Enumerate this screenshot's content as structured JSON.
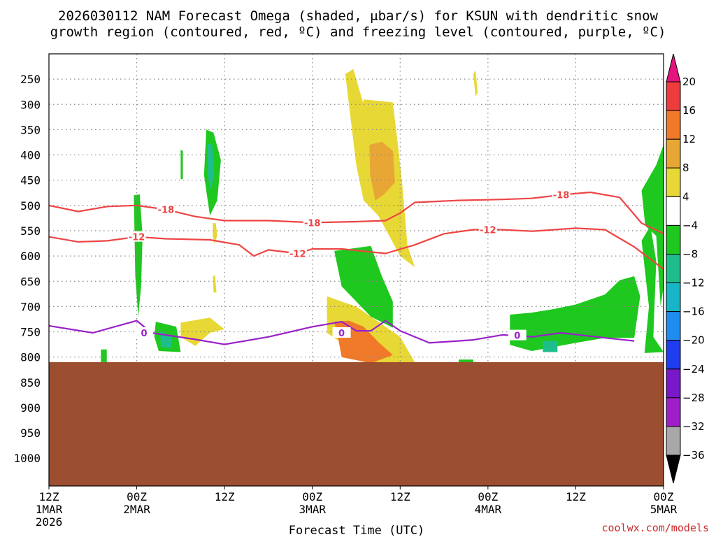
{
  "chart_data": {
    "type": "time-height",
    "title_lines": [
      "2026030112 NAM Forecast Omega (shaded, μbar/s) for KSUN with dendritic snow",
      "growth region (contoured, red, ºC) and freezing level (contoured, purple, ºC)"
    ],
    "xlabel": "Forecast Time (UTC)",
    "credit": "coolwx.com/models",
    "x_ticks": [
      {
        "h": 0,
        "top": "12Z",
        "mid": "1MAR",
        "bot": "2026"
      },
      {
        "h": 12,
        "top": "00Z",
        "mid": "2MAR",
        "bot": ""
      },
      {
        "h": 24,
        "top": "12Z",
        "mid": "",
        "bot": ""
      },
      {
        "h": 36,
        "top": "00Z",
        "mid": "3MAR",
        "bot": ""
      },
      {
        "h": 48,
        "top": "12Z",
        "mid": "",
        "bot": ""
      },
      {
        "h": 60,
        "top": "00Z",
        "mid": "4MAR",
        "bot": ""
      },
      {
        "h": 72,
        "top": "12Z",
        "mid": "",
        "bot": ""
      },
      {
        "h": 84,
        "top": "00Z",
        "mid": "5MAR",
        "bot": ""
      }
    ],
    "x_range_hours": [
      0,
      84
    ],
    "y_ticks": [
      250,
      300,
      350,
      400,
      450,
      500,
      550,
      600,
      650,
      700,
      750,
      800,
      850,
      900,
      950,
      1000
    ],
    "y_range_hPa": [
      200,
      1055
    ],
    "ground_level_hPa": 810,
    "colorbar": {
      "labels": [
        "20",
        "16",
        "12",
        "8",
        "4",
        "−4",
        "−8",
        "−12",
        "−16",
        "−20",
        "−24",
        "−28",
        "−32",
        "−36"
      ],
      "colors": [
        "#e3147e",
        "#ee3c3c",
        "#f07a2a",
        "#e8a634",
        "#e8d835",
        "#ffffff",
        "#1ec81e",
        "#1ebe8c",
        "#18b4c8",
        "#1e8cf0",
        "#1e3cf0",
        "#7818c8",
        "#a01ec8",
        "#a8a8a8",
        "#000000"
      ]
    },
    "colors": {
      "ground": "#9c4e30",
      "snow_growth": "#ee4444",
      "freezing": "#9a20c8",
      "om_pos1": "#e8d835",
      "om_pos2": "#e8a634",
      "om_pos3": "#f07a2a",
      "om_neg1": "#1ec81e",
      "om_neg2": "#1ebe8c",
      "om_neg3": "#18b4c8"
    },
    "contour_labels": {
      "m18": "-18",
      "m12": "-12",
      "zero": "0"
    },
    "lines": {
      "m18": [
        [
          0,
          500
        ],
        [
          4,
          512
        ],
        [
          8,
          502
        ],
        [
          12,
          500
        ],
        [
          16,
          508
        ],
        [
          20,
          522
        ],
        [
          24,
          530
        ],
        [
          30,
          530
        ],
        [
          36,
          534
        ],
        [
          42,
          532
        ],
        [
          46,
          530
        ],
        [
          48,
          515
        ],
        [
          50,
          494
        ],
        [
          56,
          490
        ],
        [
          62,
          488
        ],
        [
          66,
          486
        ],
        [
          70,
          479
        ],
        [
          74,
          474
        ],
        [
          78,
          484
        ],
        [
          81,
          535
        ],
        [
          84,
          556
        ]
      ],
      "m12": [
        [
          0,
          562
        ],
        [
          4,
          572
        ],
        [
          8,
          570
        ],
        [
          12,
          562
        ],
        [
          16,
          566
        ],
        [
          22,
          568
        ],
        [
          26,
          578
        ],
        [
          28,
          600
        ],
        [
          30,
          588
        ],
        [
          34,
          595
        ],
        [
          36,
          586
        ],
        [
          40,
          586
        ],
        [
          46,
          595
        ],
        [
          50,
          578
        ],
        [
          54,
          556
        ],
        [
          58,
          548
        ],
        [
          62,
          548
        ],
        [
          66,
          551
        ],
        [
          72,
          545
        ],
        [
          76,
          548
        ],
        [
          80,
          582
        ],
        [
          84,
          626
        ]
      ],
      "zero": [
        [
          0,
          738
        ],
        [
          6,
          752
        ],
        [
          12,
          728
        ],
        [
          14,
          752
        ],
        [
          20,
          765
        ],
        [
          24,
          775
        ],
        [
          30,
          760
        ],
        [
          36,
          740
        ],
        [
          40,
          730
        ],
        [
          42,
          748
        ],
        [
          44,
          748
        ],
        [
          46,
          728
        ],
        [
          48,
          748
        ],
        [
          52,
          772
        ],
        [
          58,
          766
        ],
        [
          62,
          756
        ],
        [
          66,
          760
        ],
        [
          70,
          752
        ],
        [
          76,
          762
        ],
        [
          80,
          768
        ]
      ]
    },
    "omega_regions": [
      {
        "level": "om_pos1",
        "pts": [
          [
            40.5,
            240
          ],
          [
            41.6,
            230
          ],
          [
            43,
            300
          ],
          [
            43,
            372
          ],
          [
            42,
            420
          ]
        ]
      },
      {
        "level": "om_pos1",
        "pts": [
          [
            42,
            420
          ],
          [
            43,
            290
          ],
          [
            47,
            296
          ],
          [
            47.7,
            380
          ],
          [
            48.3,
            460
          ],
          [
            49,
            580
          ],
          [
            50,
            622
          ],
          [
            48,
            600
          ],
          [
            45,
            520
          ],
          [
            43,
            490
          ]
        ]
      },
      {
        "level": "om_pos2",
        "pts": [
          [
            43.8,
            380
          ],
          [
            45.5,
            374
          ],
          [
            47,
            392
          ],
          [
            47.3,
            454
          ],
          [
            45.8,
            478
          ],
          [
            44.6,
            490
          ],
          [
            43.9,
            440
          ]
        ]
      },
      {
        "level": "om_pos1",
        "pts": [
          [
            58,
            240
          ],
          [
            58.3,
            232
          ],
          [
            58.6,
            278
          ],
          [
            58.3,
            284
          ]
        ]
      },
      {
        "level": "om_pos1",
        "pts": [
          [
            22.4,
            535
          ],
          [
            22.8,
            535
          ],
          [
            23,
            560
          ],
          [
            22.6,
            576
          ],
          [
            22.4,
            560
          ]
        ]
      },
      {
        "level": "om_pos1",
        "pts": [
          [
            22.4,
            640
          ],
          [
            22.7,
            638
          ],
          [
            22.9,
            672
          ],
          [
            22.5,
            672
          ]
        ]
      },
      {
        "level": "om_pos1",
        "pts": [
          [
            18,
            732
          ],
          [
            22,
            722
          ],
          [
            24,
            745
          ],
          [
            22,
            752
          ],
          [
            20,
            778
          ],
          [
            18,
            760
          ]
        ]
      },
      {
        "level": "om_pos1",
        "pts": [
          [
            38,
            680
          ],
          [
            42,
            700
          ],
          [
            48,
            760
          ],
          [
            50,
            810
          ],
          [
            44,
            812
          ],
          [
            38,
            752
          ]
        ]
      },
      {
        "level": "om_pos3",
        "pts": [
          [
            39,
            730
          ],
          [
            41,
            728
          ],
          [
            43,
            740
          ],
          [
            45,
            770
          ],
          [
            47,
            796
          ],
          [
            44,
            812
          ],
          [
            40,
            800
          ],
          [
            39.5,
            760
          ]
        ]
      },
      {
        "level": "om_neg1",
        "pts": [
          [
            11.6,
            480
          ],
          [
            12.4,
            478
          ],
          [
            12.8,
            560
          ],
          [
            12.6,
            660
          ],
          [
            12.2,
            720
          ],
          [
            11.8,
            640
          ]
        ]
      },
      {
        "level": "om_neg1",
        "pts": [
          [
            14.6,
            730
          ],
          [
            17.4,
            740
          ],
          [
            18,
            790
          ],
          [
            15,
            788
          ],
          [
            14.4,
            760
          ]
        ]
      },
      {
        "level": "om_neg2",
        "pts": [
          [
            15.2,
            750
          ],
          [
            16.7,
            758
          ],
          [
            16.8,
            782
          ],
          [
            15.3,
            780
          ]
        ]
      },
      {
        "level": "om_neg1",
        "pts": [
          [
            21.5,
            350
          ],
          [
            22.5,
            356
          ],
          [
            23.5,
            410
          ],
          [
            23,
            490
          ],
          [
            22,
            520
          ],
          [
            21.2,
            440
          ]
        ]
      },
      {
        "level": "om_neg2",
        "pts": [
          [
            21.7,
            378
          ],
          [
            22.3,
            378
          ],
          [
            22.6,
            440
          ],
          [
            22.1,
            470
          ],
          [
            21.7,
            440
          ]
        ]
      },
      {
        "level": "om_neg1",
        "pts": [
          [
            18,
            390
          ],
          [
            18.3,
            392
          ],
          [
            18.3,
            448
          ],
          [
            18,
            448
          ]
        ]
      },
      {
        "level": "om_neg1",
        "pts": [
          [
            7.1,
            785
          ],
          [
            7.9,
            785
          ],
          [
            7.9,
            810
          ],
          [
            7.1,
            810
          ]
        ]
      },
      {
        "level": "om_neg1",
        "pts": [
          [
            39,
            590
          ],
          [
            44,
            580
          ],
          [
            45.5,
            640
          ],
          [
            47,
            690
          ],
          [
            47,
            742
          ],
          [
            44,
            720
          ],
          [
            40,
            660
          ]
        ]
      },
      {
        "level": "om_neg1",
        "pts": [
          [
            63,
            716
          ],
          [
            66,
            712
          ],
          [
            69,
            705
          ],
          [
            72,
            696
          ],
          [
            76,
            676
          ],
          [
            78,
            648
          ],
          [
            80,
            640
          ],
          [
            80.8,
            680
          ],
          [
            80,
            762
          ],
          [
            76,
            762
          ],
          [
            72,
            772
          ],
          [
            66,
            788
          ],
          [
            63,
            776
          ]
        ]
      },
      {
        "level": "om_neg2",
        "pts": [
          [
            67.5,
            768
          ],
          [
            69.5,
            768
          ],
          [
            69.5,
            790
          ],
          [
            67.5,
            790
          ]
        ]
      },
      {
        "level": "om_neg1",
        "pts": [
          [
            81,
            470
          ],
          [
            83,
            420
          ],
          [
            84,
            380
          ],
          [
            84,
            660
          ],
          [
            83.6,
            700
          ],
          [
            83,
            560
          ],
          [
            81.5,
            540
          ]
        ]
      },
      {
        "level": "om_neg1",
        "pts": [
          [
            81,
            570
          ],
          [
            82.2,
            540
          ],
          [
            83,
            610
          ],
          [
            82.6,
            760
          ],
          [
            84,
            790
          ],
          [
            81.4,
            792
          ],
          [
            82,
            700
          ]
        ]
      },
      {
        "level": "om_neg1",
        "pts": [
          [
            56,
            805
          ],
          [
            58,
            805
          ],
          [
            58,
            812
          ],
          [
            56,
            812
          ]
        ]
      }
    ]
  }
}
